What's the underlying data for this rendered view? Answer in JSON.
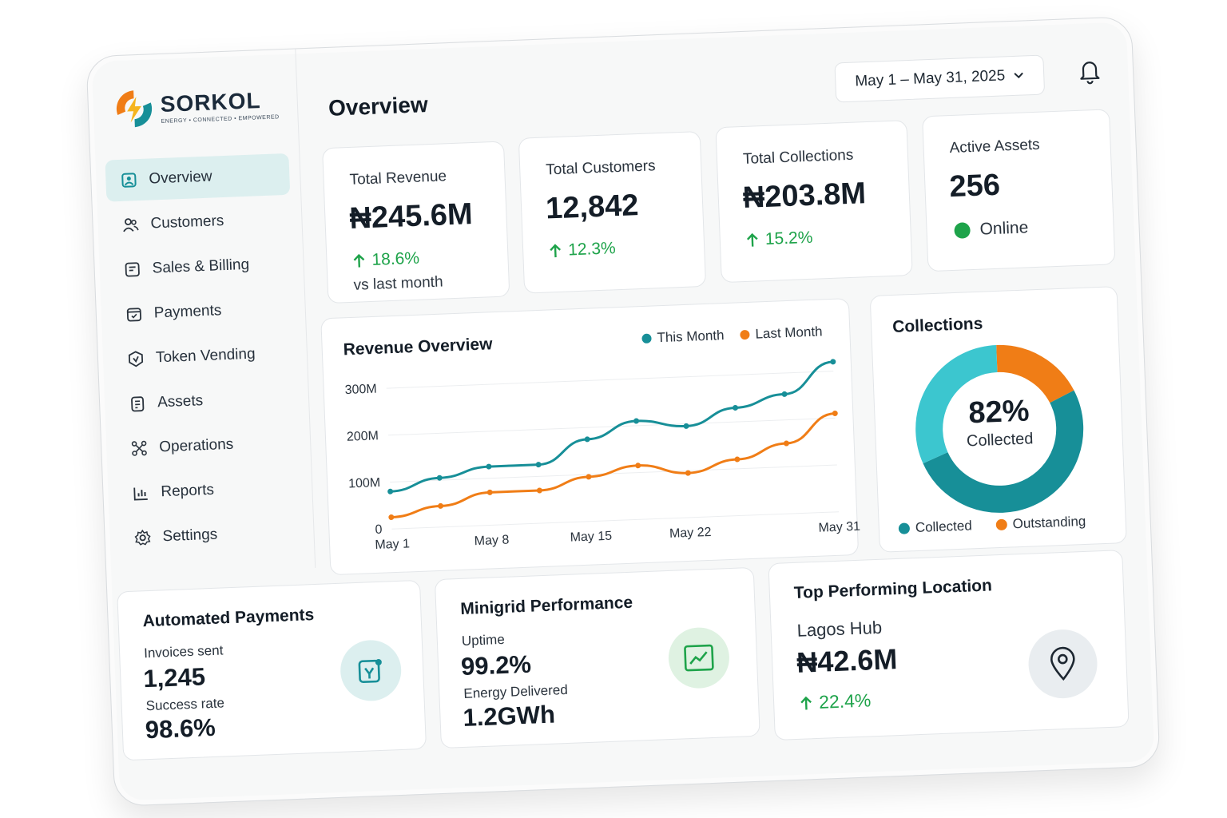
{
  "brand": {
    "name": "SORKOL",
    "tagline": "ENERGY • CONNECTED • EMPOWERED"
  },
  "sidebar": {
    "items": [
      {
        "label": "Overview",
        "icon": "dashboard-icon",
        "active": true
      },
      {
        "label": "Customers",
        "icon": "users-icon"
      },
      {
        "label": "Sales & Billing",
        "icon": "invoice-icon"
      },
      {
        "label": "Payments",
        "icon": "wallet-icon"
      },
      {
        "label": "Token Vending",
        "icon": "token-icon"
      },
      {
        "label": "Assets",
        "icon": "clipboard-icon"
      },
      {
        "label": "Operations",
        "icon": "network-icon"
      },
      {
        "label": "Reports",
        "icon": "reports-icon"
      },
      {
        "label": "Settings",
        "icon": "gear-icon"
      }
    ]
  },
  "header": {
    "title": "Overview",
    "date_range": "May 1 – May 31, 2025",
    "notification_icon": "bell-icon"
  },
  "kpis": [
    {
      "label": "Total Revenue",
      "value": "₦245.6M",
      "delta": "18.6%",
      "sub": "vs last month"
    },
    {
      "label": "Total Customers",
      "value": "12,842",
      "delta": "12.3%"
    },
    {
      "label": "Total Collections",
      "value": "₦203.8M",
      "delta": "15.2%"
    },
    {
      "label": "Active Assets",
      "value": "256",
      "status": "Online"
    }
  ],
  "revenue_chart": {
    "title": "Revenue Overview",
    "legend": [
      "This Month",
      "Last Month"
    ]
  },
  "chart_data": {
    "type": "line",
    "title": "Revenue Overview",
    "x": [
      "May 1",
      "May 4",
      "May 8",
      "May 11",
      "May 15",
      "May 18",
      "May 22",
      "May 25",
      "May 28",
      "May 31"
    ],
    "xticks": [
      "May 1",
      "May 8",
      "May 15",
      "May 22",
      "May 31"
    ],
    "yticks": [
      "0",
      "100M",
      "200M",
      "300M"
    ],
    "ylim": [
      0,
      320
    ],
    "series": [
      {
        "name": "This Month",
        "color": "#178f98",
        "values": [
          80,
          105,
          125,
          125,
          175,
          210,
          195,
          230,
          255,
          320
        ]
      },
      {
        "name": "Last Month",
        "color": "#f07d16",
        "values": [
          25,
          45,
          70,
          70,
          95,
          115,
          95,
          120,
          150,
          210
        ]
      }
    ]
  },
  "collections": {
    "title": "Collections",
    "percent": "82%",
    "caption": "Collected",
    "collected_fraction": 0.82,
    "legend": [
      "Collected",
      "Outstanding"
    ],
    "colors": {
      "collected": "#178f98",
      "collected_light": "#3cc6cf",
      "outstanding": "#f07d16"
    }
  },
  "automated_payments": {
    "title": "Automated Payments",
    "invoices_label": "Invoices sent",
    "invoices_value": "1,245",
    "success_label": "Success rate",
    "success_value": "98.6%"
  },
  "minigrid": {
    "title": "Minigrid Performance",
    "uptime_label": "Uptime",
    "uptime_value": "99.2%",
    "energy_label": "Energy Delivered",
    "energy_value": "1.2GWh"
  },
  "top_location": {
    "title": "Top Performing Location",
    "name": "Lagos Hub",
    "value": "₦42.6M",
    "delta": "22.4%"
  }
}
